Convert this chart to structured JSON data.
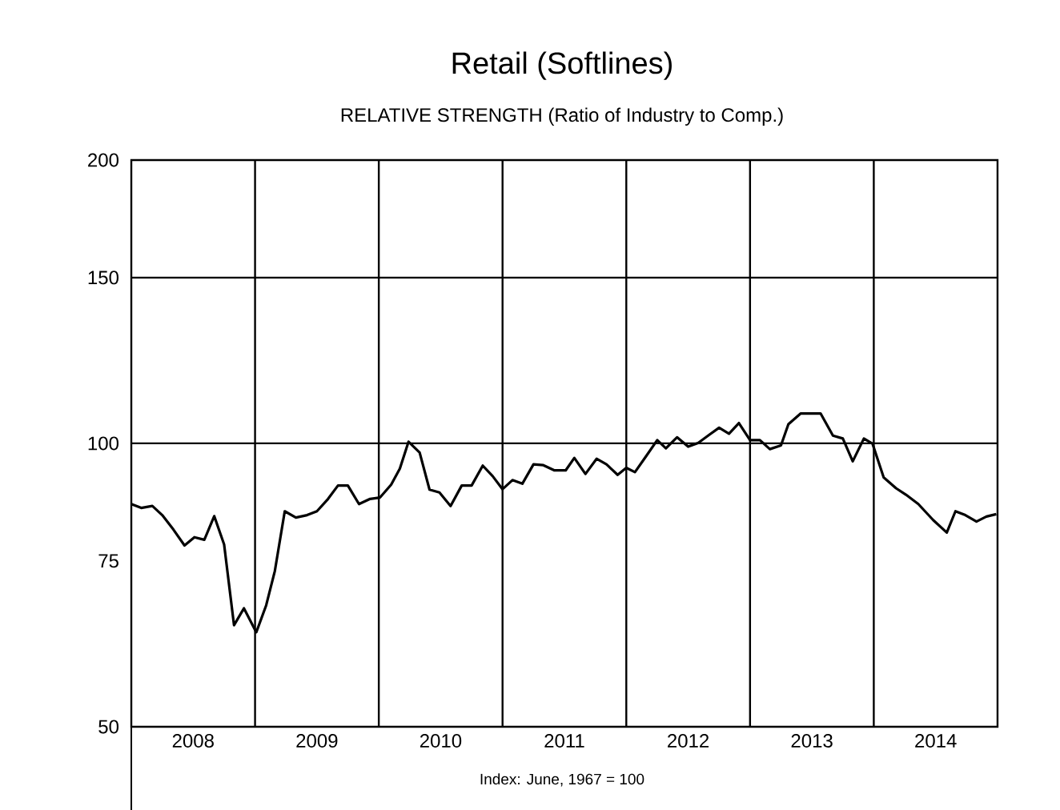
{
  "chart_data": {
    "type": "line",
    "title": "Retail  (Softlines)",
    "subtitle": "RELATIVE STRENGTH (Ratio of Industry to Comp.)",
    "annotations": [
      "Index: June, 1967 = 100"
    ],
    "log": "y",
    "ylim": [
      50,
      200
    ],
    "yticks": [
      50,
      75,
      100,
      150,
      200
    ],
    "xlim": [
      2008,
      2015
    ],
    "xticks": [
      {
        "value": 2008.5,
        "label": "2008"
      },
      {
        "value": 2009.5,
        "label": "2009"
      },
      {
        "value": 2010.5,
        "label": "2010"
      },
      {
        "value": 2011.5,
        "label": "2011"
      },
      {
        "value": 2012.5,
        "label": "2012"
      },
      {
        "value": 2013.5,
        "label": "2013"
      },
      {
        "value": 2014.5,
        "label": "2014"
      }
    ],
    "ref_lines": [
      {
        "axis": "x",
        "value": 2009,
        "color": "#000000"
      },
      {
        "axis": "x",
        "value": 2010,
        "color": "#000000"
      },
      {
        "axis": "x",
        "value": 2011,
        "color": "#000000"
      },
      {
        "axis": "x",
        "value": 2012,
        "color": "#000000"
      },
      {
        "axis": "x",
        "value": 2013,
        "color": "#000000"
      },
      {
        "axis": "x",
        "value": 2014,
        "color": "#000000"
      },
      {
        "axis": "y",
        "value": 100,
        "color": "#000000"
      },
      {
        "axis": "y",
        "value": 150,
        "color": "#000000"
      }
    ],
    "grid": false,
    "marker": "none",
    "line_style": "solid",
    "series": [
      {
        "color": "#000000",
        "x": [
          2008.0,
          2008.08,
          2008.17,
          2008.25,
          2008.34,
          2008.43,
          2008.51,
          2008.59,
          2008.67,
          2008.75,
          2008.83,
          2008.91,
          2009.01,
          2009.09,
          2009.16,
          2009.24,
          2009.33,
          2009.42,
          2009.5,
          2009.59,
          2009.67,
          2009.75,
          2009.84,
          2009.93,
          2010.01,
          2010.1,
          2010.17,
          2010.24,
          2010.33,
          2010.41,
          2010.49,
          2010.58,
          2010.67,
          2010.75,
          2010.84,
          2010.92,
          2011.0,
          2011.08,
          2011.16,
          2011.25,
          2011.33,
          2011.42,
          2011.51,
          2011.58,
          2011.67,
          2011.76,
          2011.84,
          2011.93,
          2012.0,
          2012.07,
          2012.16,
          2012.25,
          2012.32,
          2012.41,
          2012.5,
          2012.58,
          2012.67,
          2012.75,
          2012.83,
          2012.91,
          2013.0,
          2013.08,
          2013.16,
          2013.25,
          2013.31,
          2013.41,
          2013.57,
          2013.67,
          2013.75,
          2013.83,
          2013.92,
          2013.99,
          2014.08,
          2014.18,
          2014.26,
          2014.36,
          2014.48,
          2014.59,
          2014.66,
          2014.74,
          2014.83,
          2014.91,
          2014.99
        ],
        "values": [
          86.2,
          85.4,
          85.8,
          83.9,
          81.0,
          77.9,
          79.5,
          79.0,
          83.7,
          78.1,
          64.1,
          66.8,
          63.0,
          67.3,
          73.2,
          84.7,
          83.4,
          83.9,
          84.7,
          87.3,
          90.2,
          90.2,
          86.2,
          87.3,
          87.6,
          90.4,
          94.0,
          100.4,
          97.8,
          89.3,
          88.7,
          85.8,
          90.2,
          90.2,
          94.7,
          92.3,
          89.4,
          91.4,
          90.6,
          95.0,
          94.8,
          93.6,
          93.6,
          96.5,
          92.8,
          96.3,
          95.0,
          92.6,
          94.2,
          93.2,
          96.9,
          100.8,
          98.8,
          101.5,
          99.2,
          100.1,
          102.1,
          103.9,
          102.4,
          105.1,
          100.8,
          100.8,
          98.6,
          99.5,
          104.8,
          107.6,
          107.6,
          101.9,
          101.2,
          95.7,
          101.2,
          99.9,
          92.0,
          89.6,
          88.2,
          86.2,
          82.9,
          80.4,
          84.7,
          83.9,
          82.6,
          83.6,
          84.1
        ]
      }
    ]
  }
}
